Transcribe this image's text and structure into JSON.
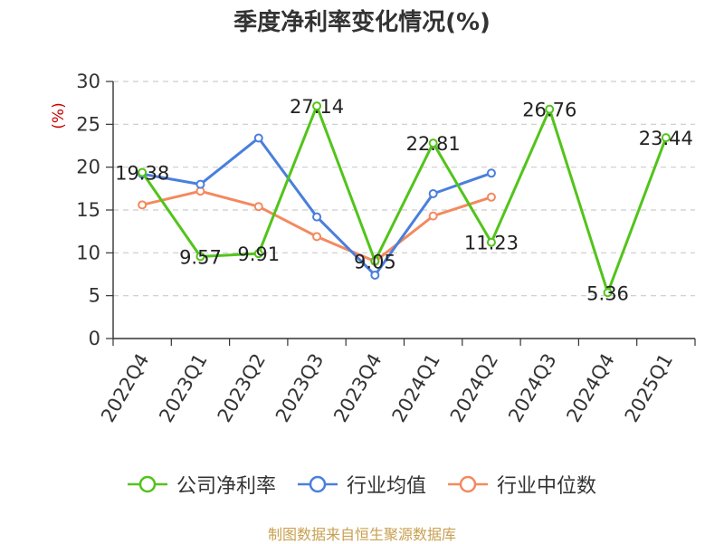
{
  "chart_data": {
    "type": "line",
    "title": "季度净利率变化情况(%)",
    "ylabel": "(%)",
    "xlabel": "",
    "ylim": [
      0,
      30
    ],
    "yticks": [
      0,
      5,
      10,
      15,
      20,
      25,
      30
    ],
    "grid": true,
    "legend_position": "bottom",
    "categories": [
      "2022Q4",
      "2023Q1",
      "2023Q2",
      "2023Q3",
      "2023Q4",
      "2024Q1",
      "2024Q2",
      "2024Q3",
      "2024Q4",
      "2025Q1"
    ],
    "series": [
      {
        "name": "公司净利率",
        "color": "#52c41a",
        "values": [
          19.38,
          9.57,
          9.91,
          27.14,
          9.05,
          22.81,
          11.23,
          26.76,
          5.36,
          23.44
        ],
        "labels": [
          "19.38",
          "9.57",
          "9.91",
          "27.14",
          "9.05",
          "22.81",
          "11.23",
          "26.76",
          "5.36",
          "23.44"
        ]
      },
      {
        "name": "行业均值",
        "color": "#4a7fdc",
        "values": [
          19.2,
          18.0,
          23.4,
          14.2,
          7.4,
          16.9,
          19.3,
          null,
          null,
          null
        ]
      },
      {
        "name": "行业中位数",
        "color": "#f4895f",
        "values": [
          15.6,
          17.2,
          15.4,
          11.9,
          9.0,
          14.3,
          16.5,
          null,
          null,
          null
        ]
      }
    ]
  },
  "source_text": "制图数据来自恒生聚源数据库",
  "colors": {
    "ylabel": "#cc0000",
    "source": "#c8a050",
    "grid": "#cccccc",
    "axis": "#333333"
  }
}
